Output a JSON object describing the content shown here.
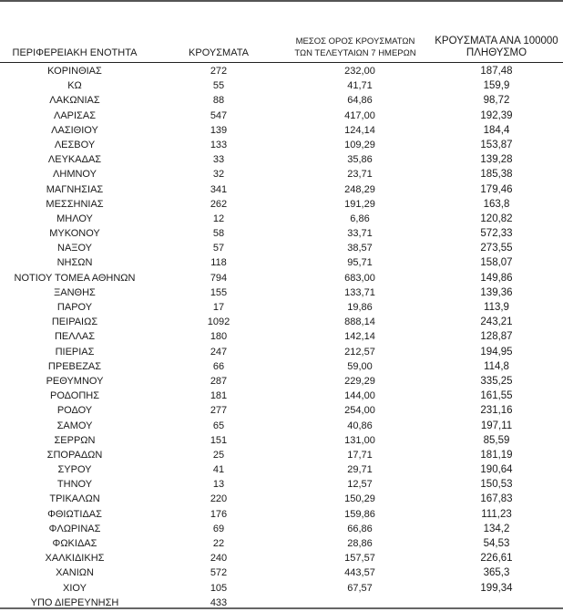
{
  "table": {
    "headers": {
      "region": "ΠΕΡΙΦΕΡΕΙΑΚΗ ΕΝΟΤΗΤΑ",
      "cases": "ΚΡΟΥΣΜΑΤΑ",
      "avg7_line1": "ΜΕΣΟΣ ΟΡΟΣ ΚΡΟΥΣΜΑΤΩΝ",
      "avg7_line2": "ΤΩΝ ΤΕΛΕΥΤΑΙΩΝ 7 ΗΜΕΡΩΝ",
      "per100k_line1": "ΚΡΟΥΣΜΑΤΑ ΑΝΑ 100000",
      "per100k_line2": "ΠΛΗΘΥΣΜΟ"
    },
    "rows": [
      [
        "ΚΟΡΙΝΘΙΑΣ",
        "272",
        "232,00",
        "187,48"
      ],
      [
        "ΚΩ",
        "55",
        "41,71",
        "159,9"
      ],
      [
        "ΛΑΚΩΝΙΑΣ",
        "88",
        "64,86",
        "98,72"
      ],
      [
        "ΛΑΡΙΣΑΣ",
        "547",
        "417,00",
        "192,39"
      ],
      [
        "ΛΑΣΙΘΙΟΥ",
        "139",
        "124,14",
        "184,4"
      ],
      [
        "ΛΕΣΒΟΥ",
        "133",
        "109,29",
        "153,87"
      ],
      [
        "ΛΕΥΚΑΔΑΣ",
        "33",
        "35,86",
        "139,28"
      ],
      [
        "ΛΗΜΝΟΥ",
        "32",
        "23,71",
        "185,38"
      ],
      [
        "ΜΑΓΝΗΣΙΑΣ",
        "341",
        "248,29",
        "179,46"
      ],
      [
        "ΜΕΣΣΗΝΙΑΣ",
        "262",
        "191,29",
        "163,8"
      ],
      [
        "ΜΗΛΟΥ",
        "12",
        "6,86",
        "120,82"
      ],
      [
        "ΜΥΚΟΝΟΥ",
        "58",
        "33,71",
        "572,33"
      ],
      [
        "ΝΑΞΟΥ",
        "57",
        "38,57",
        "273,55"
      ],
      [
        "ΝΗΣΩΝ",
        "118",
        "95,71",
        "158,07"
      ],
      [
        "ΝΟΤΙΟΥ ΤΟΜΕΑ ΑΘΗΝΩΝ",
        "794",
        "683,00",
        "149,86"
      ],
      [
        "ΞΑΝΘΗΣ",
        "155",
        "133,71",
        "139,36"
      ],
      [
        "ΠΑΡΟΥ",
        "17",
        "19,86",
        "113,9"
      ],
      [
        "ΠΕΙΡΑΙΩΣ",
        "1092",
        "888,14",
        "243,21"
      ],
      [
        "ΠΕΛΛΑΣ",
        "180",
        "142,14",
        "128,87"
      ],
      [
        "ΠΙΕΡΙΑΣ",
        "247",
        "212,57",
        "194,95"
      ],
      [
        "ΠΡΕΒΕΖΑΣ",
        "66",
        "59,00",
        "114,8"
      ],
      [
        "ΡΕΘΥΜΝΟΥ",
        "287",
        "229,29",
        "335,25"
      ],
      [
        "ΡΟΔΟΠΗΣ",
        "181",
        "144,00",
        "161,55"
      ],
      [
        "ΡΟΔΟΥ",
        "277",
        "254,00",
        "231,16"
      ],
      [
        "ΣΑΜΟΥ",
        "65",
        "40,86",
        "197,11"
      ],
      [
        "ΣΕΡΡΩΝ",
        "151",
        "131,00",
        "85,59"
      ],
      [
        "ΣΠΟΡΑΔΩΝ",
        "25",
        "17,71",
        "181,19"
      ],
      [
        "ΣΥΡΟΥ",
        "41",
        "29,71",
        "190,64"
      ],
      [
        "ΤΗΝΟΥ",
        "13",
        "12,57",
        "150,53"
      ],
      [
        "ΤΡΙΚΑΛΩΝ",
        "220",
        "150,29",
        "167,83"
      ],
      [
        "ΦΘΙΩΤΙΔΑΣ",
        "176",
        "159,86",
        "111,23"
      ],
      [
        "ΦΛΩΡΙΝΑΣ",
        "69",
        "66,86",
        "134,2"
      ],
      [
        "ΦΩΚΙΔΑΣ",
        "22",
        "28,86",
        "54,53"
      ],
      [
        "ΧΑΛΚΙΔΙΚΗΣ",
        "240",
        "157,57",
        "226,61"
      ],
      [
        "ΧΑΝΙΩΝ",
        "572",
        "443,57",
        "365,3"
      ],
      [
        "ΧΙΟΥ",
        "105",
        "67,57",
        "199,34"
      ],
      [
        "ΥΠΟ ΔΙΕΡΕΥΝΗΣΗ",
        "433",
        "",
        ""
      ]
    ]
  }
}
